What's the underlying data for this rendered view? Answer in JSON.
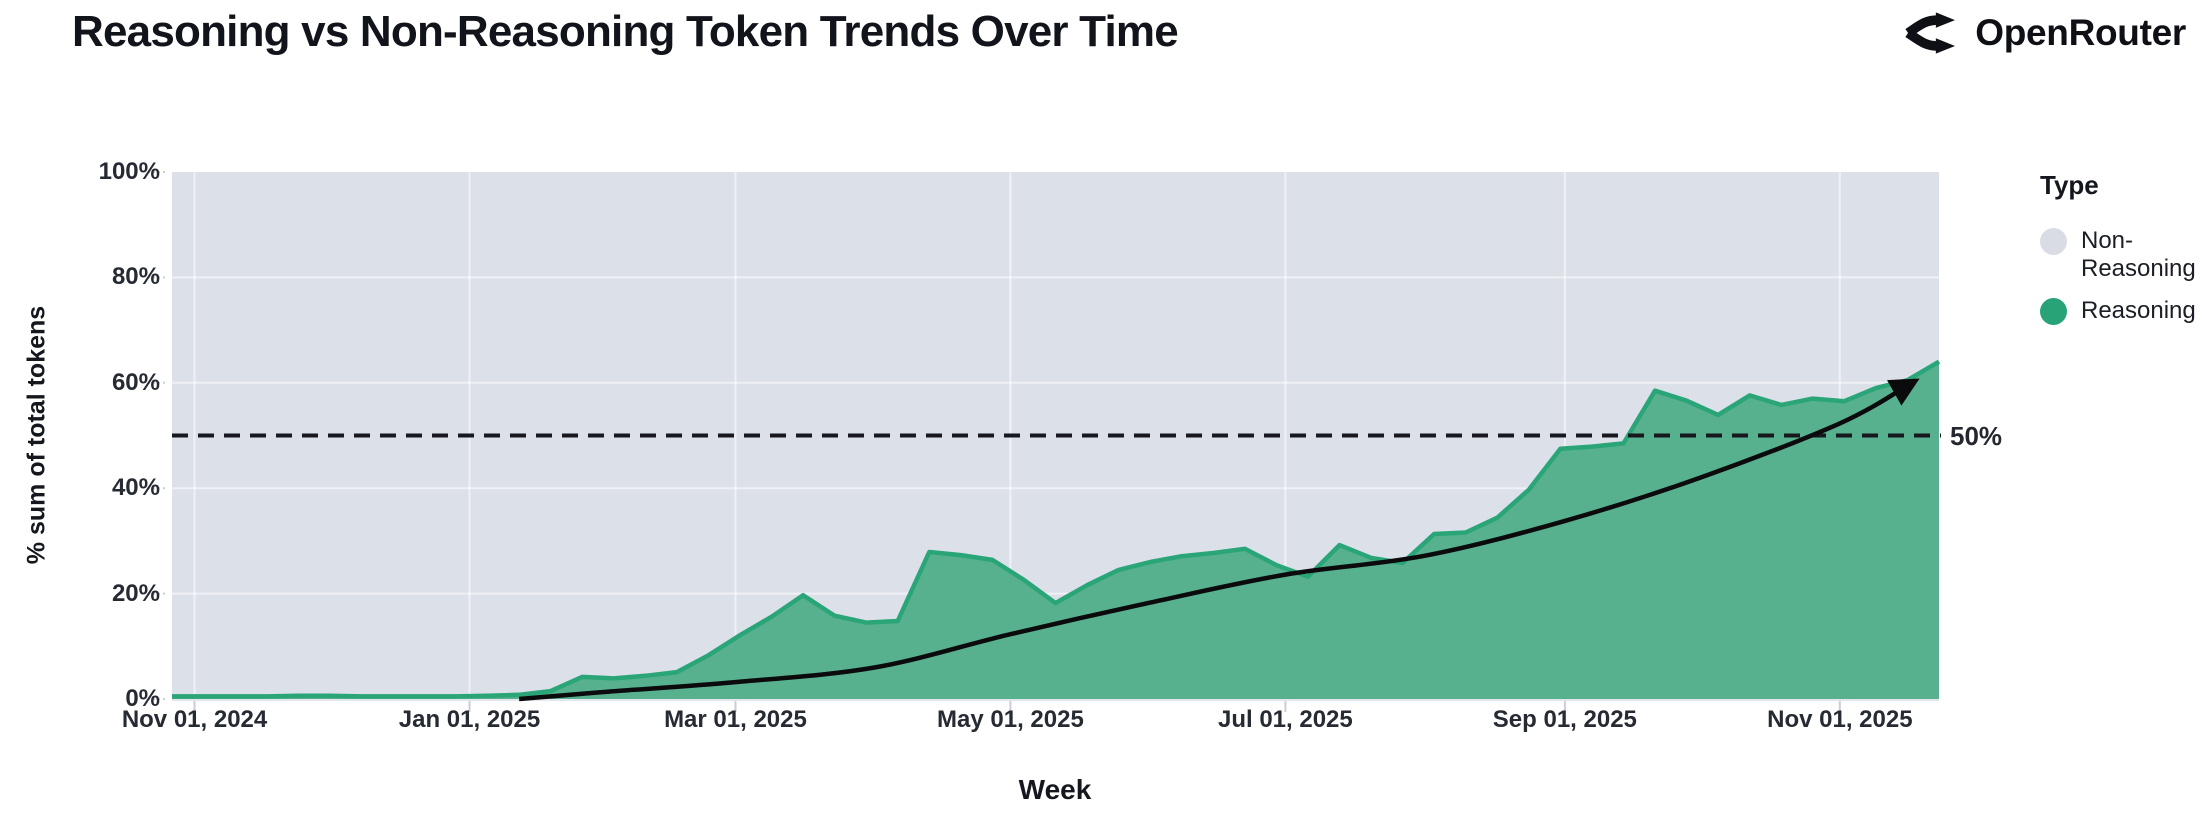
{
  "header": {
    "title": "Reasoning vs Non-Reasoning Token Trends Over Time",
    "brand": "OpenRouter"
  },
  "legend": {
    "title": "Type",
    "items": [
      {
        "label": "Non-Reasoning",
        "color": "#d9dce4"
      },
      {
        "label": "Reasoning",
        "color": "#27a377"
      }
    ]
  },
  "colors": {
    "plot_background": "#dce0e9",
    "area_fill": "#57b18e",
    "area_stroke": "#2aa578",
    "non_reasoning": "#d9dce4",
    "trend_line": "#0b0b0d",
    "gridline": "rgba(255,255,255,0.55)",
    "tick_mark": "#c9cdd7"
  },
  "chart_data": {
    "type": "area",
    "title": "Reasoning vs Non-Reasoning Token Trends Over Time",
    "normalized_percent_share": true,
    "xlabel": "Week",
    "ylabel": "% sum of total tokens",
    "ylim": [
      0,
      100
    ],
    "legend_position": "right",
    "grid": true,
    "y_axis": {
      "label": "% sum of total tokens",
      "ticks": [
        {
          "label": "0%",
          "value": 0
        },
        {
          "label": "20%",
          "value": 20
        },
        {
          "label": "40%",
          "value": 40
        },
        {
          "label": "60%",
          "value": 60
        },
        {
          "label": "80%",
          "value": 80
        },
        {
          "label": "100%",
          "value": 100
        }
      ]
    },
    "x_axis": {
      "label": "Week",
      "ticks": [
        {
          "label": "Nov 01, 2024",
          "day": 5
        },
        {
          "label": "Jan 01, 2025",
          "day": 66
        },
        {
          "label": "Mar 01, 2025",
          "day": 125
        },
        {
          "label": "May 01, 2025",
          "day": 186
        },
        {
          "label": "Jul 01, 2025",
          "day": 247
        },
        {
          "label": "Sep 01, 2025",
          "day": 309
        },
        {
          "label": "Nov 01, 2025",
          "day": 370
        }
      ],
      "day_span": [
        0,
        392
      ]
    },
    "categories": [
      "Oct 27, 2024",
      "Nov 03, 2024",
      "Nov 10, 2024",
      "Nov 17, 2024",
      "Nov 24, 2024",
      "Dec 01, 2024",
      "Dec 08, 2024",
      "Dec 15, 2024",
      "Dec 22, 2024",
      "Dec 29, 2024",
      "Jan 05, 2025",
      "Jan 12, 2025",
      "Jan 19, 2025",
      "Jan 26, 2025",
      "Feb 02, 2025",
      "Feb 09, 2025",
      "Feb 16, 2025",
      "Feb 23, 2025",
      "Mar 02, 2025",
      "Mar 09, 2025",
      "Mar 16, 2025",
      "Mar 23, 2025",
      "Mar 30, 2025",
      "Apr 06, 2025",
      "Apr 13, 2025",
      "Apr 20, 2025",
      "Apr 27, 2025",
      "May 04, 2025",
      "May 11, 2025",
      "May 18, 2025",
      "May 25, 2025",
      "Jun 01, 2025",
      "Jun 08, 2025",
      "Jun 15, 2025",
      "Jun 22, 2025",
      "Jun 29, 2025",
      "Jul 06, 2025",
      "Jul 13, 2025",
      "Jul 20, 2025",
      "Jul 27, 2025",
      "Aug 03, 2025",
      "Aug 10, 2025",
      "Aug 17, 2025",
      "Aug 24, 2025",
      "Aug 31, 2025",
      "Sep 07, 2025",
      "Sep 14, 2025",
      "Sep 21, 2025",
      "Sep 28, 2025",
      "Oct 05, 2025",
      "Oct 12, 2025",
      "Oct 19, 2025",
      "Oct 26, 2025",
      "Nov 02, 2025",
      "Nov 09, 2025",
      "Nov 16, 2025",
      "Nov 23, 2025"
    ],
    "series": [
      {
        "name": "Reasoning",
        "color": "#2aa578",
        "fill": "#57b18e",
        "values": [
          0.5,
          0.5,
          0.5,
          0.5,
          0.6,
          0.6,
          0.5,
          0.5,
          0.5,
          0.5,
          0.6,
          0.8,
          1.5,
          4.2,
          3.9,
          4.4,
          5.1,
          8.3,
          12.1,
          15.6,
          19.7,
          15.8,
          14.5,
          14.8,
          27.9,
          27.3,
          26.4,
          22.6,
          18.2,
          21.6,
          24.5,
          26.0,
          27.1,
          27.7,
          28.5,
          25.4,
          23.2,
          29.2,
          26.8,
          25.8,
          31.3,
          31.6,
          34.4,
          39.7,
          47.5,
          47.9,
          48.5,
          58.5,
          56.6,
          53.9,
          57.6,
          55.8,
          57.0,
          56.5,
          59.0,
          60.5,
          64.0
        ]
      },
      {
        "name": "Non-Reasoning",
        "color": "#d9dce4",
        "note": "fills remainder of 100% above Reasoning"
      }
    ],
    "reference_line": {
      "label": "50%",
      "value": 50,
      "style": "dashed"
    },
    "trend_line": {
      "arrow": true,
      "color": "#0b0b0d",
      "points_day_value": [
        [
          77,
          0
        ],
        [
          97,
          1.4
        ],
        [
          125,
          3.2
        ],
        [
          156,
          6.0
        ],
        [
          186,
          12.3
        ],
        [
          217,
          18.3
        ],
        [
          247,
          23.6
        ],
        [
          278,
          27.2
        ],
        [
          309,
          33.8
        ],
        [
          339,
          42.0
        ],
        [
          370,
          52.3
        ],
        [
          386,
          60.0
        ]
      ]
    }
  }
}
